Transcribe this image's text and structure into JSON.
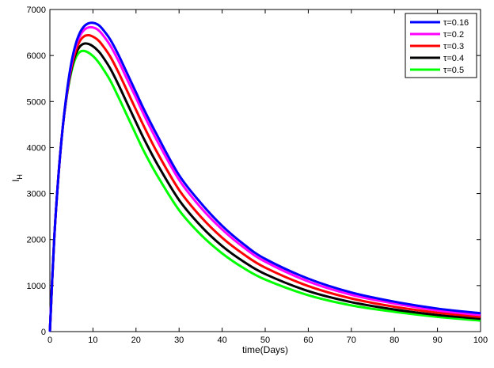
{
  "chart_data": {
    "type": "line",
    "xlabel": "time(Days)",
    "ylabel": "I",
    "ylabel_subscript": "H",
    "xlim": [
      0,
      100
    ],
    "ylim": [
      0,
      7000
    ],
    "x_ticks": [
      0,
      10,
      20,
      30,
      40,
      50,
      60,
      70,
      80,
      90,
      100
    ],
    "y_ticks": [
      0,
      1000,
      2000,
      3000,
      4000,
      5000,
      6000,
      7000
    ],
    "grid": false,
    "legend_position": "top-right",
    "x": [
      0,
      1,
      2,
      3,
      4,
      5,
      6,
      7,
      8,
      9,
      10,
      11,
      12,
      14,
      16,
      18,
      20,
      22,
      25,
      30,
      35,
      40,
      45,
      50,
      60,
      70,
      80,
      90,
      100
    ],
    "series": [
      {
        "name": "τ=0.16",
        "color": "#0000ff",
        "values": [
          0,
          2000,
          3400,
          4450,
          5250,
          5850,
          6250,
          6500,
          6640,
          6700,
          6710,
          6680,
          6600,
          6350,
          6000,
          5600,
          5200,
          4800,
          4250,
          3400,
          2800,
          2300,
          1900,
          1580,
          1150,
          850,
          650,
          500,
          400
        ]
      },
      {
        "name": "τ=0.2",
        "color": "#ff00ff",
        "values": [
          0,
          2000,
          3400,
          4450,
          5220,
          5800,
          6200,
          6430,
          6560,
          6610,
          6610,
          6570,
          6480,
          6220,
          5870,
          5470,
          5080,
          4680,
          4130,
          3300,
          2700,
          2220,
          1830,
          1520,
          1090,
          800,
          610,
          460,
          360
        ]
      },
      {
        "name": "τ=0.3",
        "color": "#ff0000",
        "values": [
          0,
          2000,
          3400,
          4450,
          5200,
          5750,
          6100,
          6320,
          6420,
          6440,
          6410,
          6350,
          6250,
          5980,
          5620,
          5220,
          4820,
          4430,
          3880,
          3080,
          2500,
          2040,
          1680,
          1390,
          990,
          720,
          540,
          410,
          320
        ]
      },
      {
        "name": "τ=0.4",
        "color": "#000000",
        "values": [
          0,
          2000,
          3400,
          4450,
          5180,
          5700,
          6030,
          6200,
          6260,
          6250,
          6200,
          6120,
          6010,
          5720,
          5350,
          4950,
          4550,
          4160,
          3630,
          2860,
          2300,
          1860,
          1520,
          1250,
          880,
          640,
          480,
          360,
          280
        ]
      },
      {
        "name": "τ=0.5",
        "color": "#00ff00",
        "values": [
          0,
          2000,
          3400,
          4450,
          5160,
          5650,
          5950,
          6080,
          6100,
          6060,
          5990,
          5890,
          5760,
          5460,
          5080,
          4680,
          4280,
          3890,
          3380,
          2640,
          2110,
          1700,
          1380,
          1130,
          790,
          570,
          430,
          320,
          240
        ]
      }
    ]
  }
}
